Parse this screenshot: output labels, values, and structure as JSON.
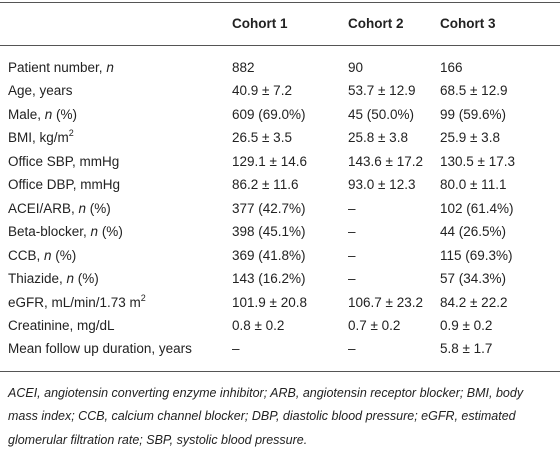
{
  "table": {
    "columns": [
      "Cohort 1",
      "Cohort 2",
      "Cohort 3"
    ],
    "rows": [
      {
        "label": [
          {
            "text": "Patient number, "
          },
          {
            "text": "n",
            "style": "italic"
          }
        ],
        "values": [
          "882",
          "90",
          "166"
        ]
      },
      {
        "label": [
          {
            "text": "Age, years"
          }
        ],
        "values": [
          "40.9 ± 7.2",
          "53.7 ± 12.9",
          "68.5 ± 12.9"
        ]
      },
      {
        "label": [
          {
            "text": "Male, "
          },
          {
            "text": "n",
            "style": "italic"
          },
          {
            "text": " (%)"
          }
        ],
        "values": [
          "609 (69.0%)",
          "45 (50.0%)",
          "99 (59.6%)"
        ]
      },
      {
        "label": [
          {
            "text": "BMI, kg/m"
          },
          {
            "text": "2",
            "style": "sup"
          }
        ],
        "values": [
          "26.5 ± 3.5",
          "25.8 ± 3.8",
          "25.9 ± 3.8"
        ]
      },
      {
        "label": [
          {
            "text": "Office SBP, mmHg"
          }
        ],
        "values": [
          "129.1 ± 14.6",
          "143.6 ± 17.2",
          "130.5 ± 17.3"
        ]
      },
      {
        "label": [
          {
            "text": "Office DBP, mmHg"
          }
        ],
        "values": [
          "86.2 ± 11.6",
          "93.0 ± 12.3",
          "80.0 ± 11.1"
        ]
      },
      {
        "label": [
          {
            "text": "ACEI/ARB, "
          },
          {
            "text": "n",
            "style": "italic"
          },
          {
            "text": " (%)"
          }
        ],
        "values": [
          "377 (42.7%)",
          "–",
          "102 (61.4%)"
        ]
      },
      {
        "label": [
          {
            "text": "Beta-blocker, "
          },
          {
            "text": "n",
            "style": "italic"
          },
          {
            "text": " (%)"
          }
        ],
        "values": [
          "398 (45.1%)",
          "–",
          "44 (26.5%)"
        ]
      },
      {
        "label": [
          {
            "text": "CCB, "
          },
          {
            "text": "n",
            "style": "italic"
          },
          {
            "text": " (%)"
          }
        ],
        "values": [
          "369 (41.8%)",
          "–",
          "115 (69.3%)"
        ]
      },
      {
        "label": [
          {
            "text": "Thiazide, "
          },
          {
            "text": "n",
            "style": "italic"
          },
          {
            "text": " (%)"
          }
        ],
        "values": [
          "143 (16.2%)",
          "–",
          "57 (34.3%)"
        ]
      },
      {
        "label": [
          {
            "text": "eGFR, mL/min/1.73 m"
          },
          {
            "text": "2",
            "style": "sup"
          }
        ],
        "values": [
          "101.9 ± 20.8",
          "106.7 ± 23.2",
          "84.2 ± 22.2"
        ]
      },
      {
        "label": [
          {
            "text": "Creatinine, mg/dL"
          }
        ],
        "values": [
          "0.8 ± 0.2",
          "0.7 ± 0.2",
          "0.9 ± 0.2"
        ]
      },
      {
        "label": [
          {
            "text": "Mean follow up duration, years"
          }
        ],
        "values": [
          "–",
          "–",
          "5.8 ± 1.7"
        ]
      }
    ],
    "footnote": "ACEI, angiotensin converting enzyme inhibitor; ARB, angiotensin receptor blocker; BMI, body mass index; CCB, calcium channel blocker; DBP, diastolic blood pressure; eGFR, estimated glomerular filtration rate; SBP, systolic blood pressure."
  }
}
